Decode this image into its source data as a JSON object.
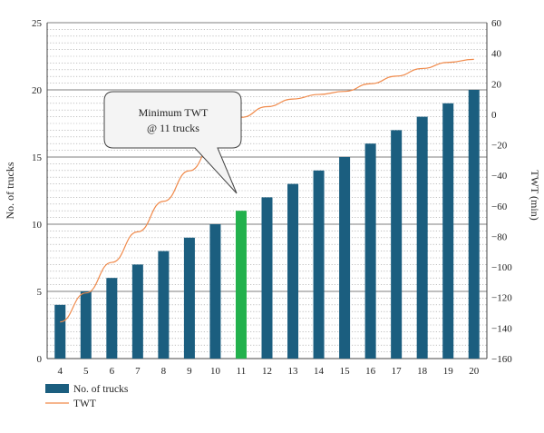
{
  "chart_data": {
    "type": "bar",
    "categories": [
      "4",
      "5",
      "6",
      "7",
      "8",
      "9",
      "10",
      "11",
      "12",
      "13",
      "14",
      "15",
      "16",
      "17",
      "18",
      "19",
      "20"
    ],
    "series": [
      {
        "name": "No. of trucks",
        "kind": "bar",
        "axis": "left",
        "values": [
          4,
          5,
          6,
          7,
          8,
          9,
          10,
          11,
          12,
          13,
          14,
          15,
          16,
          17,
          18,
          19,
          20
        ],
        "color": "#1b5e7f",
        "highlight_category": "11",
        "highlight_color": "#22b14c"
      },
      {
        "name": "TWT",
        "kind": "line",
        "axis": "right",
        "values": [
          -136,
          -117,
          -97,
          -77,
          -57,
          -37,
          -17,
          -2,
          5,
          10,
          13,
          15,
          20,
          25,
          30,
          34,
          36
        ],
        "color": "#f08a4b"
      }
    ],
    "y_left": {
      "label": "No. of trucks",
      "ylim": [
        0,
        25
      ],
      "ticks": [
        0,
        5,
        10,
        15,
        20,
        25
      ]
    },
    "y_right": {
      "label": "TWT (min)",
      "ylim": [
        -160,
        60
      ],
      "ticks": [
        -160,
        -140,
        -120,
        -100,
        -80,
        -60,
        -40,
        -20,
        0,
        20,
        40,
        60
      ]
    },
    "annotation": {
      "lines": [
        "Minimum TWT",
        "@ 11 trucks"
      ],
      "target_category": "11"
    },
    "grid": true,
    "legend_position": "bottom-left"
  }
}
